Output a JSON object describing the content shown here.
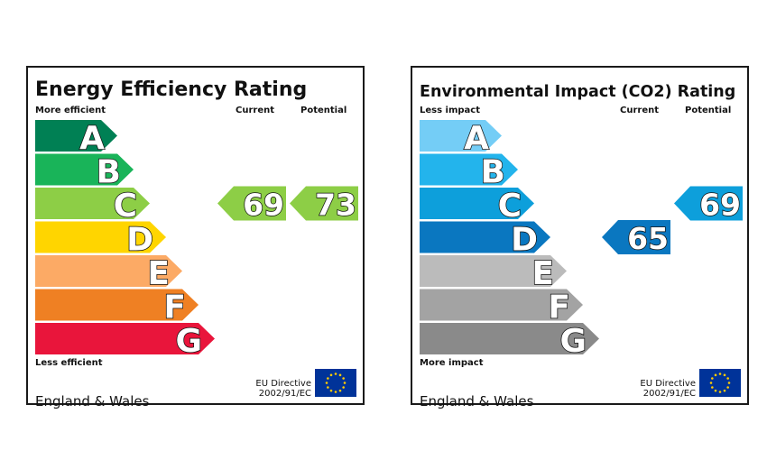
{
  "chart_data": [
    {
      "type": "bar",
      "title": "Energy Efficiency Rating",
      "top_label": "More efficient",
      "bottom_label": "Less efficient",
      "column_headers": [
        "Current",
        "Potential"
      ],
      "categories": [
        "A",
        "B",
        "C",
        "D",
        "E",
        "F",
        "G"
      ],
      "band_colors": [
        "#008054",
        "#19b459",
        "#8dce46",
        "#ffd500",
        "#fcaa65",
        "#ef8023",
        "#e9153b"
      ],
      "current": {
        "value": 69,
        "band": "C",
        "color": "#8dce46"
      },
      "potential": {
        "value": 73,
        "band": "C",
        "color": "#8dce46"
      },
      "region": "England & Wales",
      "directive": [
        "EU Directive",
        "2002/91/EC"
      ]
    },
    {
      "type": "bar",
      "title": "Environmental Impact (CO2) Rating",
      "top_label": "Less impact",
      "bottom_label": "More impact",
      "column_headers": [
        "Current",
        "Potential"
      ],
      "categories": [
        "A",
        "B",
        "C",
        "D",
        "E",
        "F",
        "G"
      ],
      "band_colors": [
        "#74cdf6",
        "#23b4ec",
        "#0d9fdb",
        "#0a77c0",
        "#bbbbbb",
        "#a3a3a3",
        "#8a8a8a"
      ],
      "current": {
        "value": 65,
        "band": "D",
        "color": "#0a77c0"
      },
      "potential": {
        "value": 69,
        "band": "C",
        "color": "#0d9fdb"
      },
      "region": "England & Wales",
      "directive": [
        "EU Directive",
        "2002/91/EC"
      ]
    }
  ]
}
